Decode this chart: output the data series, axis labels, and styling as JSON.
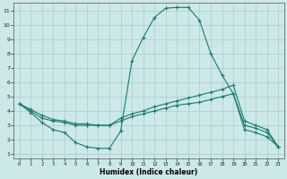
{
  "xlabel": "Humidex (Indice chaleur)",
  "xlim_min": -0.5,
  "xlim_max": 23.5,
  "ylim_min": 0.7,
  "ylim_max": 11.5,
  "xticks": [
    0,
    1,
    2,
    3,
    4,
    5,
    6,
    7,
    8,
    9,
    10,
    11,
    12,
    13,
    14,
    15,
    16,
    17,
    18,
    19,
    20,
    21,
    22,
    23
  ],
  "yticks": [
    1,
    2,
    3,
    4,
    5,
    6,
    7,
    8,
    9,
    10,
    11
  ],
  "background_color": "#cce8e8",
  "grid_color": "#aacccc",
  "line_color": "#1a7a6e",
  "curve1_x": [
    0,
    1,
    2,
    3,
    4,
    5,
    6,
    7,
    8,
    9,
    10,
    11,
    12,
    13,
    14,
    15,
    16,
    17,
    18,
    19,
    20,
    21,
    22,
    23
  ],
  "curve1_y": [
    4.5,
    3.9,
    3.2,
    2.7,
    2.5,
    1.8,
    1.5,
    1.4,
    1.4,
    2.6,
    7.5,
    9.1,
    10.5,
    11.15,
    11.2,
    11.2,
    10.3,
    8.0,
    6.5,
    5.2,
    2.7,
    2.5,
    2.2,
    1.5
  ],
  "curve2_x": [
    0,
    1,
    2,
    3,
    4,
    5,
    6,
    7,
    8,
    9,
    10,
    11,
    12,
    13,
    14,
    15,
    16,
    17,
    18,
    19,
    20,
    21,
    22,
    23
  ],
  "curve2_y": [
    4.5,
    4.0,
    3.5,
    3.3,
    3.2,
    3.0,
    3.0,
    3.0,
    3.0,
    3.3,
    3.6,
    3.8,
    4.0,
    4.2,
    4.4,
    4.5,
    4.6,
    4.8,
    5.0,
    5.2,
    3.0,
    2.8,
    2.5,
    1.5
  ],
  "curve3_x": [
    0,
    1,
    2,
    3,
    4,
    5,
    6,
    7,
    8,
    9,
    10,
    11,
    12,
    13,
    14,
    15,
    16,
    17,
    18,
    19,
    20,
    21,
    22,
    23
  ],
  "curve3_y": [
    4.5,
    4.1,
    3.7,
    3.4,
    3.3,
    3.1,
    3.1,
    3.0,
    3.0,
    3.5,
    3.8,
    4.0,
    4.3,
    4.5,
    4.7,
    4.9,
    5.1,
    5.3,
    5.5,
    5.8,
    3.3,
    3.0,
    2.7,
    1.5
  ]
}
